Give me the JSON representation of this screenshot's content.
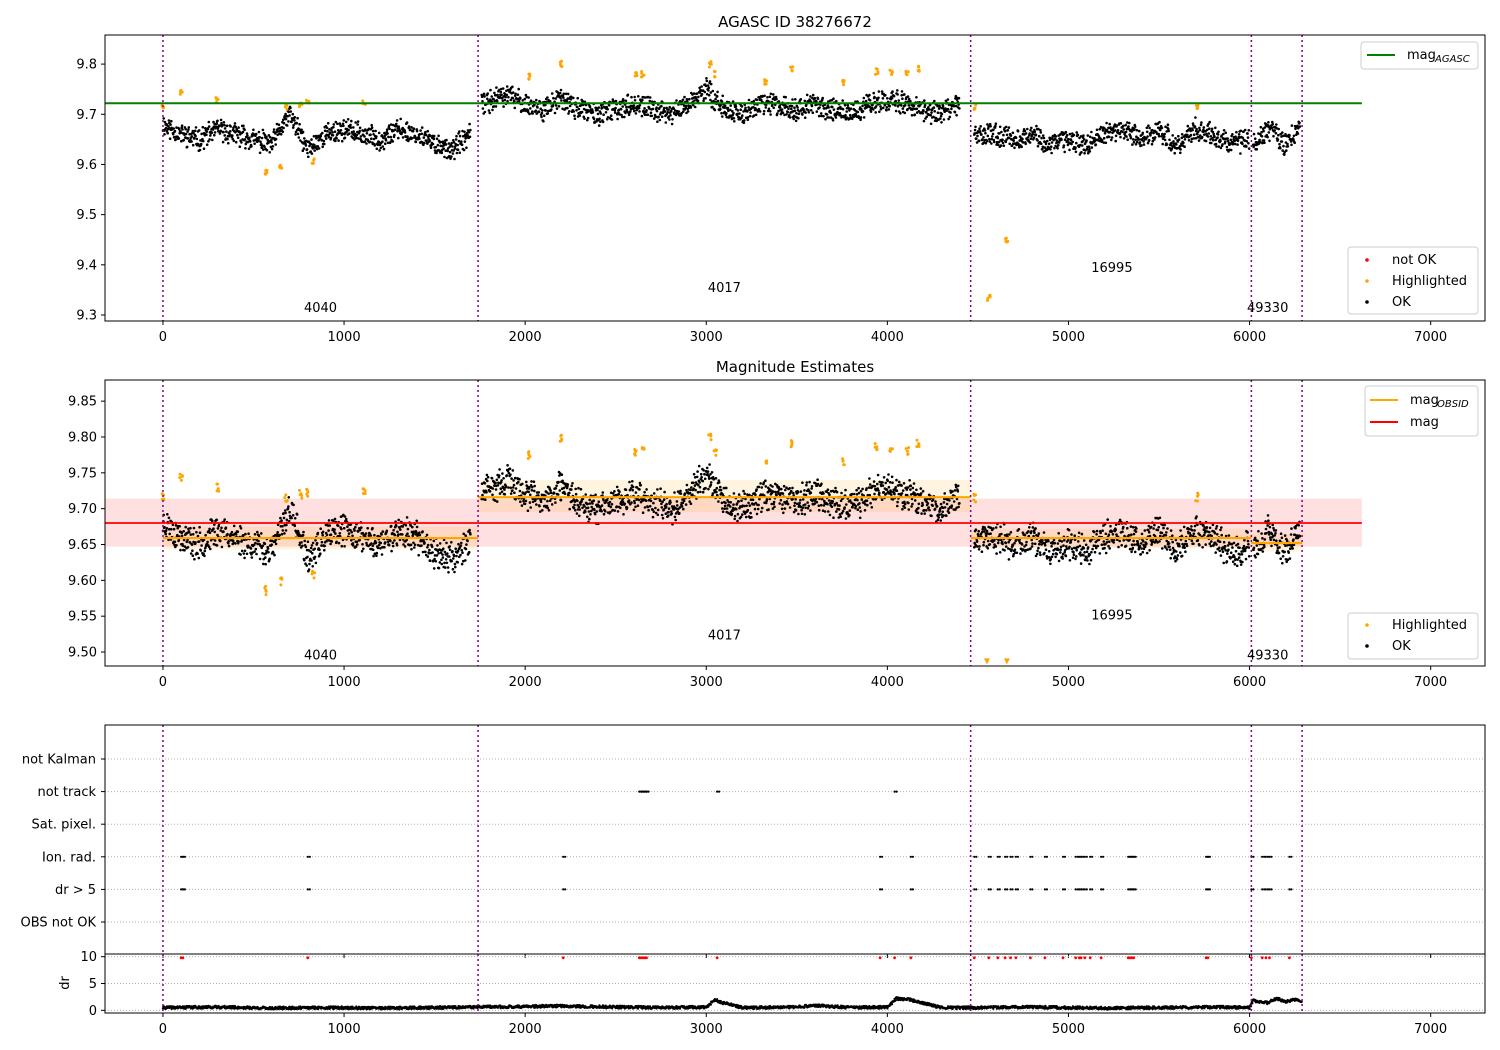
{
  "figure": {
    "title": "AGASC ID 38276672",
    "x_ticks": [
      "0",
      "1000",
      "2000",
      "3000",
      "4000",
      "5000",
      "6000",
      "7000"
    ]
  },
  "chart_data": [
    {
      "type": "scatter",
      "title": "AGASC ID 38276672",
      "xlabel": "",
      "ylabel": "",
      "xlim": [
        -320,
        7300
      ],
      "ylim": [
        9.288,
        9.858
      ],
      "y_ticks": [
        9.3,
        9.4,
        9.5,
        9.6,
        9.7,
        9.8
      ],
      "legend_top": [
        {
          "label": "mag",
          "sub": "AGASC",
          "color": "#008000",
          "kind": "line"
        }
      ],
      "legend_bottom": [
        {
          "label": "not OK",
          "color": "#ff0000"
        },
        {
          "label": "Highlighted",
          "color": "#ffa500"
        },
        {
          "label": "OK",
          "color": "#000000"
        }
      ],
      "hlines": [
        {
          "name": "mag_AGASC",
          "y": 9.722,
          "x_range": [
            -320,
            6620
          ],
          "color": "#008000"
        }
      ],
      "obsid_boundaries": [
        0,
        1740,
        4460,
        6010,
        6290
      ],
      "obsid_labels": [
        {
          "text": "4040",
          "x": 870,
          "y": 9.314
        },
        {
          "text": "4017",
          "x": 3100,
          "y": 9.354
        },
        {
          "text": "16995",
          "x": 5240,
          "y": 9.394
        },
        {
          "text": "49330",
          "x": 6100,
          "y": 9.314
        }
      ],
      "series": [
        {
          "name": "OK",
          "color": "#000000",
          "segments": [
            {
              "x": [
                0,
                100,
                200,
                300,
                400,
                500,
                600,
                700,
                800,
                900,
                1000,
                1100,
                1200,
                1300,
                1400,
                1500,
                1600,
                1700
              ],
              "y": [
                9.68,
                9.66,
                9.65,
                9.67,
                9.66,
                9.65,
                9.64,
                9.7,
                9.63,
                9.66,
                9.67,
                9.66,
                9.65,
                9.67,
                9.66,
                9.64,
                9.63,
                9.66
              ]
            },
            {
              "x": [
                1760,
                1900,
                2000,
                2100,
                2200,
                2300,
                2400,
                2500,
                2600,
                2700,
                2800,
                2900,
                3000,
                3100,
                3200,
                3300,
                3400,
                3500,
                3600,
                3700,
                3800,
                3900,
                4000,
                4100,
                4200,
                4300,
                4400
              ],
              "y": [
                9.72,
                9.74,
                9.72,
                9.71,
                9.73,
                9.71,
                9.7,
                9.71,
                9.72,
                9.71,
                9.7,
                9.72,
                9.75,
                9.71,
                9.7,
                9.72,
                9.72,
                9.71,
                9.72,
                9.71,
                9.7,
                9.72,
                9.73,
                9.72,
                9.71,
                9.7,
                9.72
              ]
            },
            {
              "x": [
                4480,
                4600,
                4700,
                4800,
                4900,
                5000,
                5100,
                5200,
                5300,
                5400,
                5500,
                5600,
                5700,
                5800,
                5900,
                6000
              ],
              "y": [
                9.66,
                9.66,
                9.65,
                9.66,
                9.64,
                9.65,
                9.64,
                9.66,
                9.67,
                9.65,
                9.67,
                9.64,
                9.67,
                9.66,
                9.64,
                9.65
              ]
            },
            {
              "x": [
                6020,
                6100,
                6200,
                6280
              ],
              "y": [
                9.64,
                9.67,
                9.64,
                9.68
              ]
            }
          ]
        },
        {
          "name": "Highlighted",
          "color": "#ffa500",
          "points": [
            [
              0,
              9.716
            ],
            [
              100,
              9.745
            ],
            [
              300,
              9.73
            ],
            [
              570,
              9.586
            ],
            [
              650,
              9.598
            ],
            [
              680,
              9.715
            ],
            [
              760,
              9.72
            ],
            [
              800,
              9.722
            ],
            [
              830,
              9.607
            ],
            [
              1110,
              9.725
            ],
            [
              2020,
              9.775
            ],
            [
              2200,
              9.8
            ],
            [
              2610,
              9.78
            ],
            [
              2650,
              9.78
            ],
            [
              3020,
              9.8
            ],
            [
              3050,
              9.78
            ],
            [
              3330,
              9.765
            ],
            [
              3470,
              9.79
            ],
            [
              3760,
              9.765
            ],
            [
              3940,
              9.785
            ],
            [
              4020,
              9.782
            ],
            [
              4110,
              9.78
            ],
            [
              4170,
              9.79
            ],
            [
              4480,
              9.715
            ],
            [
              4560,
              9.335
            ],
            [
              4660,
              9.451
            ],
            [
              5710,
              9.716
            ]
          ]
        }
      ]
    },
    {
      "type": "scatter",
      "title": "Magnitude Estimates",
      "xlabel": "",
      "ylabel": "",
      "xlim": [
        -320,
        7300
      ],
      "ylim": [
        9.4805,
        9.8795
      ],
      "y_ticks": [
        9.5,
        9.55,
        9.6,
        9.65,
        9.7,
        9.75,
        9.8,
        9.85
      ],
      "legend_top": [
        {
          "label": "mag",
          "sub": "OBSID",
          "color": "#ffa500",
          "kind": "line"
        },
        {
          "label": "mag",
          "sub": "",
          "color": "#ff0000",
          "kind": "line"
        }
      ],
      "legend_bottom": [
        {
          "label": "Highlighted",
          "color": "#ffa500"
        },
        {
          "label": "OK",
          "color": "#000000"
        }
      ],
      "mag": {
        "y": 9.68,
        "band": [
          9.647,
          9.714
        ],
        "x_range": [
          -320,
          6620
        ]
      },
      "mag_obsid": [
        {
          "x0": 0,
          "x1": 1740,
          "y": 9.659,
          "band": [
            9.643,
            9.675
          ]
        },
        {
          "x0": 1740,
          "x1": 4460,
          "y": 9.716,
          "band": [
            9.695,
            9.74
          ]
        },
        {
          "x0": 4460,
          "x1": 6010,
          "y": 9.659,
          "band": [
            9.645,
            9.672
          ]
        },
        {
          "x0": 6010,
          "x1": 6290,
          "y": 9.652,
          "band": [
            9.64,
            9.665
          ]
        }
      ],
      "obsid_boundaries": [
        0,
        1740,
        4460,
        6010,
        6290
      ],
      "obsid_labels": [
        {
          "text": "4040",
          "x": 870,
          "y": 9.495
        },
        {
          "text": "4017",
          "x": 3100,
          "y": 9.523
        },
        {
          "text": "16995",
          "x": 5240,
          "y": 9.551
        },
        {
          "text": "49330",
          "x": 6100,
          "y": 9.495
        }
      ],
      "series": [
        {
          "name": "OK",
          "color": "#000000",
          "segments": [
            {
              "x": [
                0,
                100,
                200,
                300,
                400,
                500,
                600,
                700,
                800,
                900,
                1000,
                1100,
                1200,
                1300,
                1400,
                1500,
                1600,
                1700
              ],
              "y": [
                9.68,
                9.66,
                9.65,
                9.67,
                9.66,
                9.65,
                9.64,
                9.7,
                9.63,
                9.66,
                9.67,
                9.66,
                9.65,
                9.67,
                9.66,
                9.64,
                9.63,
                9.66
              ]
            },
            {
              "x": [
                1760,
                1900,
                2000,
                2100,
                2200,
                2300,
                2400,
                2500,
                2600,
                2700,
                2800,
                2900,
                3000,
                3100,
                3200,
                3300,
                3400,
                3500,
                3600,
                3700,
                3800,
                3900,
                4000,
                4100,
                4200,
                4300,
                4400
              ],
              "y": [
                9.72,
                9.74,
                9.72,
                9.71,
                9.73,
                9.71,
                9.7,
                9.71,
                9.72,
                9.71,
                9.7,
                9.72,
                9.75,
                9.71,
                9.7,
                9.72,
                9.72,
                9.71,
                9.72,
                9.71,
                9.7,
                9.72,
                9.73,
                9.72,
                9.71,
                9.7,
                9.72
              ]
            },
            {
              "x": [
                4480,
                4600,
                4700,
                4800,
                4900,
                5000,
                5100,
                5200,
                5300,
                5400,
                5500,
                5600,
                5700,
                5800,
                5900,
                6000
              ],
              "y": [
                9.66,
                9.66,
                9.65,
                9.66,
                9.64,
                9.65,
                9.64,
                9.66,
                9.67,
                9.65,
                9.67,
                9.64,
                9.67,
                9.66,
                9.64,
                9.65
              ]
            },
            {
              "x": [
                6020,
                6100,
                6200,
                6280
              ],
              "y": [
                9.64,
                9.67,
                9.64,
                9.68
              ]
            }
          ]
        },
        {
          "name": "Highlighted",
          "color": "#ffa500",
          "points": [
            [
              0,
              9.716
            ],
            [
              100,
              9.745
            ],
            [
              300,
              9.73
            ],
            [
              570,
              9.586
            ],
            [
              650,
              9.598
            ],
            [
              680,
              9.715
            ],
            [
              760,
              9.72
            ],
            [
              800,
              9.722
            ],
            [
              830,
              9.607
            ],
            [
              1110,
              9.725
            ],
            [
              2020,
              9.775
            ],
            [
              2200,
              9.8
            ],
            [
              2610,
              9.78
            ],
            [
              2650,
              9.78
            ],
            [
              3020,
              9.8
            ],
            [
              3050,
              9.78
            ],
            [
              3330,
              9.765
            ],
            [
              3470,
              9.79
            ],
            [
              3760,
              9.765
            ],
            [
              3940,
              9.785
            ],
            [
              4020,
              9.782
            ],
            [
              4110,
              9.78
            ],
            [
              4170,
              9.79
            ],
            [
              4480,
              9.715
            ],
            [
              5710,
              9.716
            ]
          ]
        },
        {
          "name": "out-of-range markers",
          "color": "#ffa500",
          "points": [
            [
              4550,
              9.487
            ],
            [
              4660,
              9.487
            ]
          ]
        }
      ]
    },
    {
      "type": "scatter",
      "title": "",
      "xlabel": "",
      "ylabel": "",
      "xlim": [
        -320,
        7300
      ],
      "categories": [
        "not Kalman",
        "not track",
        "Sat. pixel.",
        "Ion. rad.",
        "dr > 5",
        "OBS not OK"
      ],
      "obsid_boundaries": [
        0,
        1740,
        4460,
        6010,
        6290
      ],
      "flags": {
        "not track": [
          2630,
          2640,
          2650,
          2660,
          2670,
          3060,
          4040
        ],
        "Ion. rad.": [
          100,
          110,
          800,
          2210,
          3960,
          4130,
          4480,
          4560,
          4610,
          4650,
          4680,
          4710,
          4790,
          4870,
          4970,
          5040,
          5060,
          5070,
          5090,
          5120,
          5180,
          5330,
          5340,
          5350,
          5360,
          5760,
          5770,
          6010,
          6070,
          6090,
          6110,
          6220
        ],
        "dr > 5": [
          100,
          110,
          800,
          2210,
          3960,
          4130,
          4480,
          4560,
          4610,
          4650,
          4680,
          4710,
          4790,
          4870,
          4970,
          5040,
          5060,
          5070,
          5090,
          5120,
          5180,
          5330,
          5340,
          5350,
          5360,
          5760,
          5770,
          6010,
          6070,
          6090,
          6110,
          6220
        ]
      }
    },
    {
      "type": "scatter",
      "title": "",
      "xlabel": "",
      "ylabel": "dr",
      "xlim": [
        -320,
        7300
      ],
      "ylim": [
        -0.5,
        10.5
      ],
      "y_ticks": [
        0,
        5,
        10
      ],
      "obsid_boundaries": [
        0,
        1740,
        4460,
        6010,
        6290
      ],
      "series": [
        {
          "name": "dr",
          "color": "#000000",
          "x": [
            0,
            300,
            600,
            900,
            1200,
            1500,
            1740,
            2000,
            2200,
            2500,
            2800,
            3000,
            3050,
            3080,
            3200,
            3500,
            3600,
            3800,
            4000,
            4050,
            4120,
            4300,
            4460,
            4800,
            5200,
            5500,
            5800,
            6000,
            6020,
            6100,
            6150,
            6200,
            6250,
            6290
          ],
          "y": [
            0.5,
            0.6,
            0.4,
            0.5,
            0.4,
            0.5,
            0.6,
            0.7,
            0.8,
            0.6,
            0.5,
            0.6,
            2.0,
            1.5,
            0.5,
            0.6,
            0.9,
            0.5,
            0.6,
            2.2,
            2.0,
            0.5,
            0.5,
            0.6,
            0.4,
            0.5,
            0.6,
            0.5,
            1.8,
            1.4,
            2.2,
            1.6,
            2.0,
            1.5
          ]
        },
        {
          "name": "dr > 5",
          "color": "#ff0000",
          "x": [
            100,
            110,
            800,
            2210,
            2630,
            2640,
            2650,
            2660,
            2670,
            3060,
            3960,
            4040,
            4130,
            4480,
            4560,
            4610,
            4650,
            4680,
            4710,
            4790,
            4870,
            4970,
            5040,
            5060,
            5070,
            5090,
            5120,
            5180,
            5330,
            5340,
            5350,
            5360,
            5760,
            5770,
            6010,
            6070,
            6090,
            6110,
            6220
          ],
          "y": [
            9.8,
            9.8,
            9.8,
            9.8,
            9.8,
            9.8,
            9.8,
            9.8,
            9.8,
            9.8,
            9.8,
            9.8,
            9.8,
            9.8,
            9.8,
            9.8,
            9.8,
            9.8,
            9.8,
            9.8,
            9.8,
            9.8,
            9.8,
            9.8,
            9.8,
            9.8,
            9.8,
            9.8,
            9.8,
            9.8,
            9.8,
            9.8,
            9.8,
            9.8,
            9.8,
            9.8,
            9.8,
            9.8,
            9.8
          ]
        }
      ]
    }
  ]
}
